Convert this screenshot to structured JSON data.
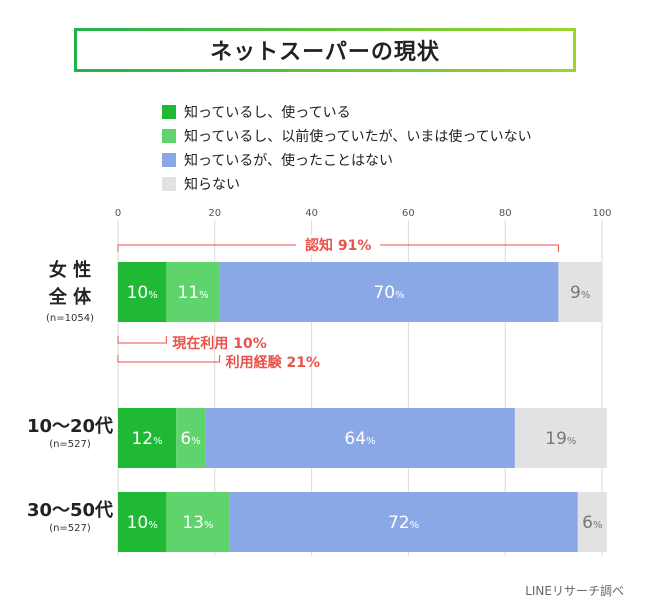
{
  "title": "ネットスーパーの現状",
  "source": "LINEリサーチ調べ",
  "colors": {
    "known_current": "#20b935",
    "known_past": "#5fd36c",
    "known_never": "#8ba8e6",
    "unknown": "#e2e2e2",
    "annotation": "#e8534a"
  },
  "chart_data": {
    "type": "bar",
    "orientation": "horizontal",
    "stacked": true,
    "xlim": [
      0,
      100
    ],
    "xticks": [
      "0",
      "20",
      "40",
      "60",
      "80",
      "100"
    ],
    "categories": [
      {
        "label_lines": [
          "女 性",
          "全 体"
        ],
        "sub": "(n=1054)"
      },
      {
        "label_lines": [
          "10〜20代"
        ],
        "sub": "(n=527)"
      },
      {
        "label_lines": [
          "30〜50代"
        ],
        "sub": "(n=527)"
      }
    ],
    "series": [
      {
        "name": "知っているし、使っている",
        "color": "#20b935",
        "values": [
          10,
          12,
          10
        ],
        "labels": [
          "10",
          "12",
          "10"
        ]
      },
      {
        "name": "知っているし、以前使っていたが、いまは使っていない",
        "color": "#5fd36c",
        "values": [
          11,
          6,
          13
        ],
        "labels": [
          "11",
          "6",
          "13"
        ]
      },
      {
        "name": "知っているが、使ったことはない",
        "color": "#8ba8e6",
        "values": [
          70,
          64,
          72
        ],
        "labels": [
          "70",
          "64",
          "72"
        ]
      },
      {
        "name": "知らない",
        "color": "#e2e2e2",
        "values": [
          9,
          19,
          6
        ],
        "labels": [
          "9",
          "19",
          "6"
        ]
      }
    ],
    "label_unit": "%",
    "annotations": [
      {
        "text": "認知 91%",
        "from": 0,
        "to": 91,
        "position": "above"
      },
      {
        "text": "現在利用 10%",
        "from": 0,
        "to": 10,
        "position": "below"
      },
      {
        "text": "利用経験 21%",
        "from": 0,
        "to": 21,
        "position": "below"
      }
    ]
  }
}
